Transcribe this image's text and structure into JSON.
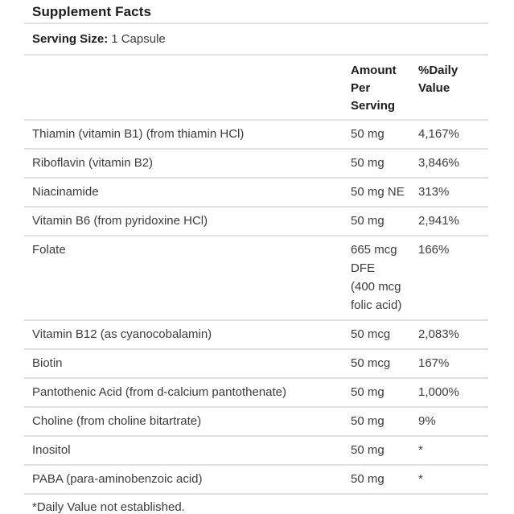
{
  "panel": {
    "title": "Supplement Facts",
    "serving_size_label": "Serving Size:",
    "serving_size_value": "1 Capsule",
    "footnote": "*Daily Value not established."
  },
  "table": {
    "headers": {
      "nutrient": "",
      "amount": "Amount\nPer\nServing",
      "daily_value": "%Daily\nValue"
    },
    "rows": [
      {
        "name": "Thiamin (vitamin B1) (from thiamin HCl)",
        "amount": "50 mg",
        "daily_value": "4,167%"
      },
      {
        "name": "Riboflavin (vitamin B2)",
        "amount": "50 mg",
        "daily_value": "3,846%"
      },
      {
        "name": "Niacinamide",
        "amount": "50 mg NE",
        "daily_value": "313%"
      },
      {
        "name": "Vitamin B6 (from pyridoxine HCl)",
        "amount": "50 mg",
        "daily_value": "2,941%"
      },
      {
        "name": "Folate",
        "amount": "665 mcg\nDFE\n(400 mcg\nfolic acid)",
        "daily_value": "166%"
      },
      {
        "name": "Vitamin B12 (as cyanocobalamin)",
        "amount": "50 mcg",
        "daily_value": "2,083%"
      },
      {
        "name": "Biotin",
        "amount": "50 mcg",
        "daily_value": "167%"
      },
      {
        "name": "Pantothenic Acid (from d-calcium pantothenate)",
        "amount": "50 mg",
        "daily_value": "1,000%"
      },
      {
        "name": "Choline (from choline bitartrate)",
        "amount": "50 mg",
        "daily_value": "9%"
      },
      {
        "name": "Inositol",
        "amount": "50 mg",
        "daily_value": "*"
      },
      {
        "name": "PABA (para-aminobenzoic acid)",
        "amount": "50 mg",
        "daily_value": "*"
      }
    ]
  },
  "colors": {
    "rule": "#e1e1e1",
    "heading": "#1d1d1d",
    "text": "#3c3c3c",
    "background": "#ffffff"
  }
}
